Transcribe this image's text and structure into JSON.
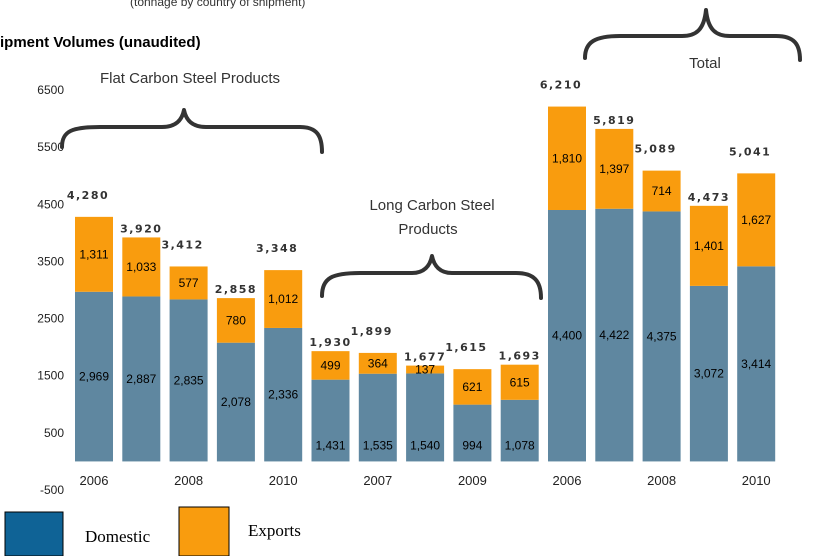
{
  "subtitle_fragment": "(tonnage by country of shipment)",
  "chart_data": {
    "type": "bar",
    "stacked": true,
    "title": "ipment Volumes (unaudited)",
    "yticks": [
      6500,
      5500,
      4500,
      3500,
      2500,
      1500,
      500,
      -500
    ],
    "ylim": [
      -500,
      6500
    ],
    "groups": [
      {
        "label": "Flat Carbon Steel Products",
        "categories": [
          "2006",
          "2007",
          "2008",
          "2009",
          "2010"
        ],
        "domestic": [
          2969,
          2887,
          2835,
          2078,
          2336
        ],
        "exports": [
          1311,
          1033,
          577,
          780,
          1012
        ],
        "totals": [
          "4,280",
          "3,920",
          "3,412",
          "2,858",
          "3,348"
        ],
        "domestic_labels": [
          "2,969",
          "2,887",
          "2,835",
          "2,078",
          "2,336"
        ],
        "export_labels": [
          "1,311",
          "1,033",
          "577",
          "780",
          "1,012"
        ]
      },
      {
        "label": "Long Carbon Steel Products",
        "categories": [
          "2006",
          "2007",
          "2008",
          "2009",
          "2010"
        ],
        "domestic": [
          1431,
          1535,
          1540,
          994,
          1078
        ],
        "exports": [
          499,
          364,
          137,
          621,
          615
        ],
        "totals": [
          "1,930",
          "1,899",
          "1,677",
          "1,615",
          "1,693"
        ],
        "domestic_labels": [
          "1,431",
          "1,535",
          "1,540",
          "994",
          "1,078"
        ],
        "export_labels": [
          "499",
          "364",
          "137",
          "621",
          "615"
        ]
      },
      {
        "label": "Total",
        "categories": [
          "2006",
          "2007",
          "2008",
          "2009",
          "2010"
        ],
        "domestic": [
          4400,
          4422,
          4375,
          3072,
          3414
        ],
        "exports": [
          1810,
          1397,
          714,
          1401,
          1627
        ],
        "totals": [
          "6,210",
          "5,819",
          "5,089",
          "4,473",
          "5,041"
        ],
        "domestic_labels": [
          "4,400",
          "4,422",
          "4,375",
          "3,072",
          "3,414"
        ],
        "export_labels": [
          "1,810",
          "1,397",
          "714",
          "1,401",
          "1,627"
        ]
      }
    ],
    "xtick_labels": [
      "2006",
      "2008",
      "2010",
      "2007",
      "2009",
      "2006",
      "2008",
      "2010"
    ],
    "series": [
      {
        "name": "Domestic",
        "color": "#5f87a0"
      },
      {
        "name": "Exports",
        "color": "#f99c0e"
      }
    ],
    "legend": {
      "placement": "bottom-left",
      "domestic_swatch": "#0f6396",
      "exports_swatch": "#f99c0e"
    },
    "grid": false
  }
}
